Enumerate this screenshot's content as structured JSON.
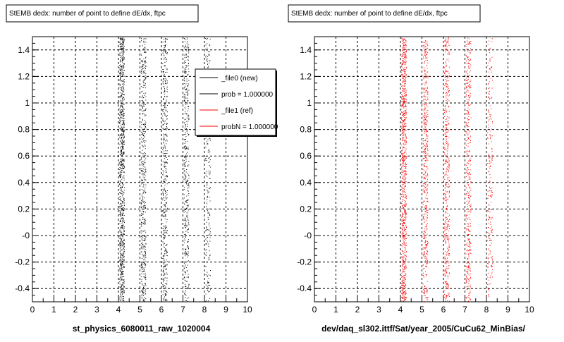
{
  "chart_data": [
    {
      "type": "scatter",
      "title": "StEMB dedx: number of point to define dE/dx, ftpc",
      "xlabel": "st_physics_6080011_raw_1020004",
      "ylabel": "",
      "xlim": [
        0,
        10
      ],
      "ylim": [
        -0.5,
        1.5
      ],
      "x_ticks": [
        "0",
        "1",
        "2",
        "3",
        "4",
        "5",
        "6",
        "7",
        "8",
        "9",
        "10"
      ],
      "y_ticks": [
        "-0.4",
        "-0.2",
        "-0",
        "0.2",
        "0.4",
        "0.6",
        "0.8",
        "1",
        "1.2",
        "1.4"
      ],
      "grid": true,
      "series": [
        {
          "name": "_file0 (new)",
          "color": "#000000",
          "bands": [
            {
              "x": 4.15,
              "density": 1.0
            },
            {
              "x": 5.15,
              "density": 0.55
            },
            {
              "x": 6.15,
              "density": 0.5
            },
            {
              "x": 7.15,
              "density": 0.45
            },
            {
              "x": 8.15,
              "density": 0.25
            }
          ]
        }
      ],
      "legend": {
        "position": "top-right",
        "entries": [
          {
            "label": "_file0 (new)",
            "color": "#000000"
          },
          {
            "label": "prob = 1.000000",
            "color": "#000000"
          },
          {
            "label": "_file1 (ref)",
            "color": "#ff0000"
          },
          {
            "label": "probN = 1.000000",
            "color": "#ff0000"
          }
        ]
      }
    },
    {
      "type": "scatter",
      "title": "StEMB dedx: number of point to define dE/dx, ftpc",
      "xlabel": "dev/daq_sl302.ittf/Sat/year_2005/CuCu62_MinBias/",
      "ylabel": "",
      "xlim": [
        0,
        10
      ],
      "ylim": [
        -0.5,
        1.5
      ],
      "x_ticks": [
        "0",
        "1",
        "2",
        "3",
        "4",
        "5",
        "6",
        "7",
        "8",
        "9",
        "10"
      ],
      "y_ticks": [
        "-0.4",
        "-0.2",
        "-0",
        "0.2",
        "0.4",
        "0.6",
        "0.8",
        "1",
        "1.2",
        "1.4"
      ],
      "grid": true,
      "series": [
        {
          "name": "_file1 (ref)",
          "color": "#ff0000",
          "bands": [
            {
              "x": 4.15,
              "density": 1.0
            },
            {
              "x": 5.15,
              "density": 0.55
            },
            {
              "x": 6.15,
              "density": 0.5
            },
            {
              "x": 7.15,
              "density": 0.45
            },
            {
              "x": 8.15,
              "density": 0.25
            }
          ]
        }
      ]
    }
  ]
}
